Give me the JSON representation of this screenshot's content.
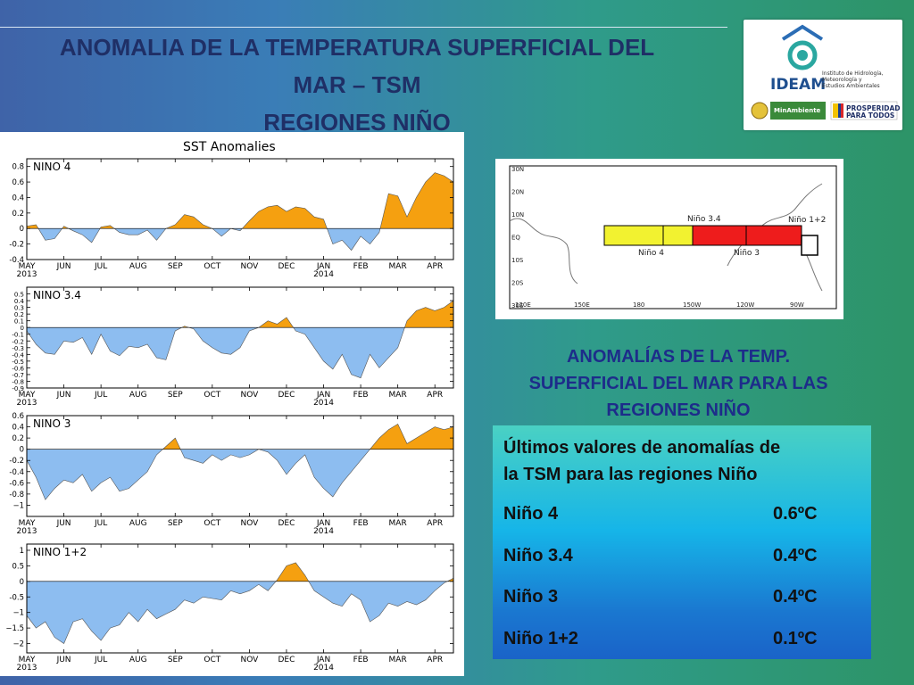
{
  "slide": {
    "title_lines": [
      "ANOMALIA DE LA TEMPERATURA SUPERFICIAL DEL",
      "MAR – TSM",
      "REGIONES NIÑO"
    ]
  },
  "logos": {
    "ideam_wordmark": "IDEAM",
    "ideam_full_name_lines": [
      "Instituto de Hidrología,",
      "Meteorología y",
      "Estudios Ambientales"
    ],
    "ministry": "MinAmbiente",
    "prosperity_lines": [
      "PROSPERIDAD",
      "PARA TODOS"
    ]
  },
  "chart_data": [
    {
      "type": "area",
      "title": "SST Anomalies",
      "panel_label": "NINO 4",
      "x_ticks": [
        "MAY",
        "JUN",
        "JUL",
        "AUG",
        "SEP",
        "OCT",
        "NOV",
        "DEC",
        "JAN",
        "FEB",
        "MAR",
        "APR"
      ],
      "x_year_labels": [
        {
          "tick": "MAY",
          "year": "2013"
        },
        {
          "tick": "JAN",
          "year": "2014"
        }
      ],
      "ylim": [
        -0.4,
        0.9
      ],
      "y_ticks": [
        -0.4,
        -0.2,
        0,
        0.2,
        0.4,
        0.6,
        0.8
      ],
      "y_tick_labels": [
        "-0.4",
        "-0.2",
        "0",
        "0.2",
        "0.4",
        "0.6",
        "0.8"
      ],
      "positive_color": "#f5a010",
      "negative_color": "#8dbdf0",
      "x": [
        0,
        0.25,
        0.5,
        0.75,
        1,
        1.25,
        1.5,
        1.75,
        2,
        2.25,
        2.5,
        2.75,
        3,
        3.25,
        3.5,
        3.75,
        4,
        4.25,
        4.5,
        4.75,
        5,
        5.25,
        5.5,
        5.75,
        6,
        6.25,
        6.5,
        6.75,
        7,
        7.25,
        7.5,
        7.75,
        8,
        8.25,
        8.5,
        8.75,
        9,
        9.25,
        9.5,
        9.75,
        10,
        10.25,
        10.5,
        10.75,
        11,
        11.25,
        11.5
      ],
      "y": [
        0.03,
        0.05,
        -0.15,
        -0.13,
        0.03,
        -0.03,
        -0.08,
        -0.18,
        0.02,
        0.04,
        -0.05,
        -0.08,
        -0.08,
        -0.02,
        -0.15,
        0.0,
        0.05,
        0.18,
        0.15,
        0.05,
        0.0,
        -0.1,
        0.0,
        -0.03,
        0.1,
        0.22,
        0.28,
        0.3,
        0.22,
        0.28,
        0.26,
        0.15,
        0.12,
        -0.2,
        -0.15,
        -0.28,
        -0.1,
        -0.2,
        -0.05,
        0.45,
        0.42,
        0.15,
        0.4,
        0.6,
        0.72,
        0.68,
        0.6
      ]
    },
    {
      "type": "area",
      "panel_label": "NINO 3.4",
      "x_ticks": [
        "MAY",
        "JUN",
        "JUL",
        "AUG",
        "SEP",
        "OCT",
        "NOV",
        "DEC",
        "JAN",
        "FEB",
        "MAR",
        "APR"
      ],
      "x_year_labels": [
        {
          "tick": "MAY",
          "year": "2013"
        },
        {
          "tick": "JAN",
          "year": "2014"
        }
      ],
      "ylim": [
        -0.9,
        0.6
      ],
      "y_ticks": [
        0.5,
        0.4,
        0.3,
        0.2,
        0.1,
        0,
        -0.1,
        -0.2,
        -0.3,
        -0.4,
        -0.5,
        -0.6,
        -0.7,
        -0.8,
        -0.9
      ],
      "y_tick_labels": [
        "0.5",
        "0.4",
        "0.3",
        "0.2",
        "0.1",
        "0",
        "-0.1",
        "-0.2",
        "-0.3",
        "-0.4",
        "-0.5",
        "-0.6",
        "-0.7",
        "-0.8",
        "-0.9"
      ],
      "positive_color": "#f5a010",
      "negative_color": "#8dbdf0",
      "x": [
        0,
        0.25,
        0.5,
        0.75,
        1,
        1.25,
        1.5,
        1.75,
        2,
        2.25,
        2.5,
        2.75,
        3,
        3.25,
        3.5,
        3.75,
        4,
        4.25,
        4.5,
        4.75,
        5,
        5.25,
        5.5,
        5.75,
        6,
        6.25,
        6.5,
        6.75,
        7,
        7.25,
        7.5,
        7.75,
        8,
        8.25,
        8.5,
        8.75,
        9,
        9.25,
        9.5,
        9.75,
        10,
        10.25,
        10.5,
        10.75,
        11,
        11.25,
        11.5
      ],
      "y": [
        -0.05,
        -0.25,
        -0.38,
        -0.4,
        -0.2,
        -0.22,
        -0.15,
        -0.4,
        -0.1,
        -0.35,
        -0.42,
        -0.28,
        -0.3,
        -0.25,
        -0.45,
        -0.48,
        -0.05,
        0.02,
        -0.02,
        -0.2,
        -0.3,
        -0.38,
        -0.4,
        -0.3,
        -0.05,
        0.0,
        0.1,
        0.05,
        0.15,
        -0.05,
        -0.1,
        -0.3,
        -0.5,
        -0.62,
        -0.4,
        -0.7,
        -0.75,
        -0.4,
        -0.6,
        -0.45,
        -0.3,
        0.1,
        0.25,
        0.3,
        0.25,
        0.3,
        0.4
      ]
    },
    {
      "type": "area",
      "panel_label": "NINO 3",
      "x_ticks": [
        "MAY",
        "JUN",
        "JUL",
        "AUG",
        "SEP",
        "OCT",
        "NOV",
        "DEC",
        "JAN",
        "FEB",
        "MAR",
        "APR"
      ],
      "x_year_labels": [
        {
          "tick": "MAY",
          "year": "2013"
        },
        {
          "tick": "JAN",
          "year": "2014"
        }
      ],
      "ylim": [
        -1.2,
        0.6
      ],
      "y_ticks": [
        -1,
        -0.8,
        -0.6,
        -0.4,
        -0.2,
        0,
        0.2,
        0.4,
        0.6
      ],
      "y_tick_labels": [
        "−1",
        "-0.8",
        "-0.6",
        "-0.4",
        "-0.2",
        "0",
        "0.2",
        "0.4",
        "0.6"
      ],
      "positive_color": "#f5a010",
      "negative_color": "#8dbdf0",
      "x": [
        0,
        0.25,
        0.5,
        0.75,
        1,
        1.25,
        1.5,
        1.75,
        2,
        2.25,
        2.5,
        2.75,
        3,
        3.25,
        3.5,
        3.75,
        4,
        4.25,
        4.5,
        4.75,
        5,
        5.25,
        5.5,
        5.75,
        6,
        6.25,
        6.5,
        6.75,
        7,
        7.25,
        7.5,
        7.75,
        8,
        8.25,
        8.5,
        8.75,
        9,
        9.25,
        9.5,
        9.75,
        10,
        10.25,
        10.5,
        10.75,
        11,
        11.25,
        11.5
      ],
      "y": [
        -0.2,
        -0.5,
        -0.9,
        -0.7,
        -0.55,
        -0.6,
        -0.45,
        -0.75,
        -0.6,
        -0.5,
        -0.75,
        -0.7,
        -0.55,
        -0.4,
        -0.1,
        0.05,
        0.2,
        -0.15,
        -0.2,
        -0.25,
        -0.1,
        -0.2,
        -0.1,
        -0.15,
        -0.1,
        0.0,
        -0.05,
        -0.2,
        -0.45,
        -0.25,
        -0.1,
        -0.5,
        -0.7,
        -0.85,
        -0.6,
        -0.4,
        -0.2,
        0.0,
        0.2,
        0.35,
        0.45,
        0.1,
        0.2,
        0.3,
        0.4,
        0.35,
        0.4
      ]
    },
    {
      "type": "area",
      "panel_label": "NINO 1+2",
      "x_ticks": [
        "MAY",
        "JUN",
        "JUL",
        "AUG",
        "SEP",
        "OCT",
        "NOV",
        "DEC",
        "JAN",
        "FEB",
        "MAR",
        "APR"
      ],
      "x_year_labels": [
        {
          "tick": "MAY",
          "year": "2013"
        },
        {
          "tick": "JAN",
          "year": "2014"
        }
      ],
      "ylim": [
        -2.3,
        1.2
      ],
      "y_ticks": [
        -2,
        -1.5,
        -1,
        -0.5,
        0,
        0.5,
        1
      ],
      "y_tick_labels": [
        "−2",
        "−1.5",
        "−1",
        "-0.5",
        "0",
        "0.5",
        "1"
      ],
      "positive_color": "#f5a010",
      "negative_color": "#8dbdf0",
      "x": [
        0,
        0.25,
        0.5,
        0.75,
        1,
        1.25,
        1.5,
        1.75,
        2,
        2.25,
        2.5,
        2.75,
        3,
        3.25,
        3.5,
        3.75,
        4,
        4.25,
        4.5,
        4.75,
        5,
        5.25,
        5.5,
        5.75,
        6,
        6.25,
        6.5,
        6.75,
        7,
        7.25,
        7.5,
        7.75,
        8,
        8.25,
        8.5,
        8.75,
        9,
        9.25,
        9.5,
        9.75,
        10,
        10.25,
        10.5,
        10.75,
        11,
        11.25,
        11.5
      ],
      "y": [
        -1.1,
        -1.5,
        -1.3,
        -1.8,
        -2.0,
        -1.3,
        -1.2,
        -1.6,
        -1.9,
        -1.5,
        -1.4,
        -1.0,
        -1.3,
        -0.9,
        -1.2,
        -1.05,
        -0.9,
        -0.6,
        -0.7,
        -0.5,
        -0.55,
        -0.6,
        -0.3,
        -0.4,
        -0.3,
        -0.1,
        -0.3,
        0.05,
        0.5,
        0.6,
        0.2,
        -0.3,
        -0.5,
        -0.7,
        -0.8,
        -0.4,
        -0.6,
        -1.3,
        -1.1,
        -0.7,
        -0.8,
        -0.65,
        -0.75,
        -0.6,
        -0.3,
        -0.05,
        0.1
      ]
    }
  ],
  "map": {
    "lat_labels": [
      "30N",
      "20N",
      "10N",
      "EQ",
      "10S",
      "20S",
      "30S"
    ],
    "lon_labels": [
      "120E",
      "150E",
      "180",
      "150W",
      "120W",
      "90W"
    ],
    "region_labels": {
      "nino4": "Niño 4",
      "nino34": "Niño 3.4",
      "nino3": "Niño 3",
      "nino12": "Niño 1+2"
    },
    "colors": {
      "nino4": "#f2f230",
      "nino3": "#ee1c1c",
      "nino12": "#ffffff"
    }
  },
  "caption_lines": [
    "ANOMALÍAS DE LA TEMP.",
    "SUPERFICIAL DEL MAR PARA LAS",
    "REGIONES NIÑO"
  ],
  "values_box": {
    "heading_lines": [
      "Últimos valores de anomalías de",
      "la TSM para las regiones Niño"
    ],
    "rows": [
      {
        "name": "Niño 4",
        "value": "0.6ºC"
      },
      {
        "name": "Niño 3.4",
        "value": "0.4ºC"
      },
      {
        "name": "Niño 3",
        "value": "0.4ºC"
      },
      {
        "name": "Niño 1+2",
        "value": "0.1ºC"
      }
    ]
  }
}
